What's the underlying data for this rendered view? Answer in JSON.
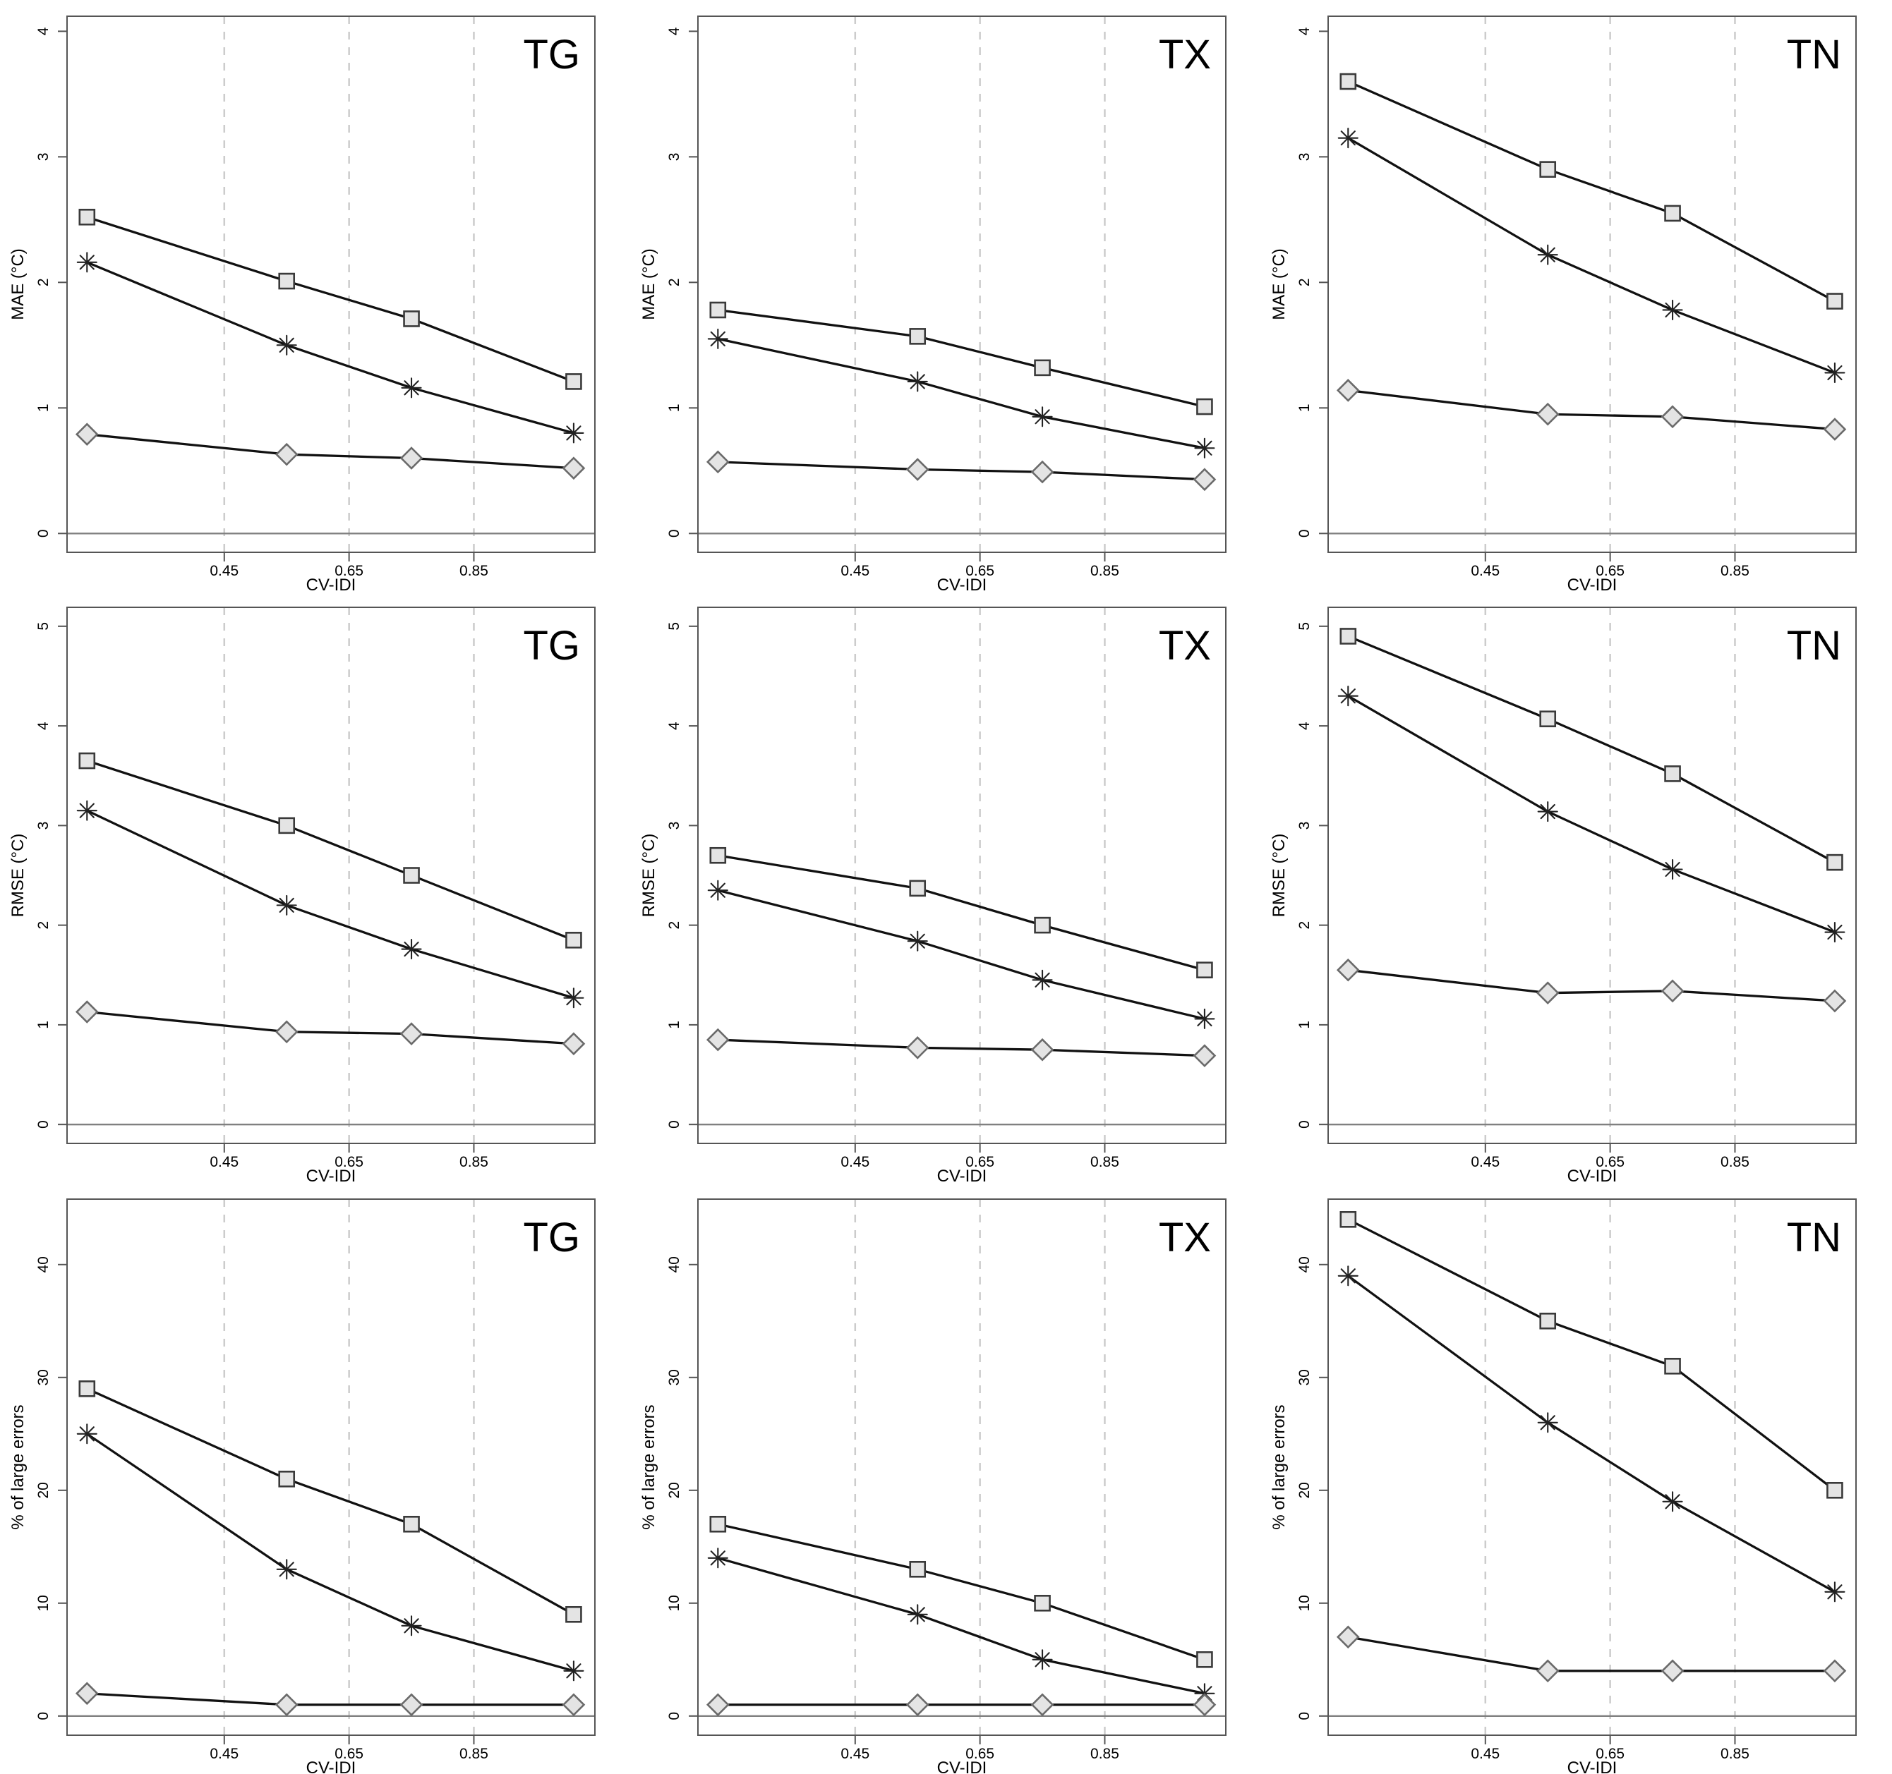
{
  "figure": {
    "column_tags": [
      "TG",
      "TX",
      "TN"
    ],
    "row_metrics": [
      "MAE (°C)",
      "RMSE (°C)",
      "% of large errors"
    ],
    "x_axis_label": "CV-IDI",
    "marker_shapes": [
      "square",
      "asterisk",
      "diamond"
    ],
    "colors": {
      "series_line": "#111111",
      "marker_fill": "#e4e4e4",
      "square_stroke": "#3a3a3a",
      "diamond_stroke": "#6a6a6a",
      "asterisk_stroke": "#222222",
      "gridline": "#cccccc",
      "axis_box": "#555555",
      "zero_line": "#808080",
      "text": "#000000"
    }
  },
  "chart_data": [
    {
      "type": "line",
      "tag": "TG",
      "ylabel": "MAE (°C)",
      "xlabel": "CV-IDI",
      "x": [
        0.23,
        0.55,
        0.75,
        1.01
      ],
      "xticks": [
        0.45,
        0.65,
        0.85
      ],
      "yticks": [
        0,
        1,
        2,
        3,
        4
      ],
      "xlim": [
        0.198,
        1.044
      ],
      "ylim": [
        -0.15,
        4.12
      ],
      "grid": "vertical-dashed",
      "legend": "none",
      "series": [
        {
          "marker": "square",
          "values": [
            2.52,
            2.01,
            1.71,
            1.21
          ]
        },
        {
          "marker": "asterisk",
          "values": [
            2.16,
            1.5,
            1.16,
            0.8
          ]
        },
        {
          "marker": "diamond",
          "values": [
            0.79,
            0.63,
            0.6,
            0.52
          ]
        }
      ]
    },
    {
      "type": "line",
      "tag": "TX",
      "ylabel": "MAE (°C)",
      "xlabel": "CV-IDI",
      "x": [
        0.23,
        0.55,
        0.75,
        1.01
      ],
      "xticks": [
        0.45,
        0.65,
        0.85
      ],
      "yticks": [
        0,
        1,
        2,
        3,
        4
      ],
      "xlim": [
        0.198,
        1.044
      ],
      "ylim": [
        -0.15,
        4.12
      ],
      "grid": "vertical-dashed",
      "legend": "none",
      "series": [
        {
          "marker": "square",
          "values": [
            1.78,
            1.57,
            1.32,
            1.01
          ]
        },
        {
          "marker": "asterisk",
          "values": [
            1.55,
            1.21,
            0.93,
            0.68
          ]
        },
        {
          "marker": "diamond",
          "values": [
            0.57,
            0.51,
            0.49,
            0.43
          ]
        }
      ]
    },
    {
      "type": "line",
      "tag": "TN",
      "ylabel": "MAE (°C)",
      "xlabel": "CV-IDI",
      "x": [
        0.23,
        0.55,
        0.75,
        1.01
      ],
      "xticks": [
        0.45,
        0.65,
        0.85
      ],
      "yticks": [
        0,
        1,
        2,
        3,
        4
      ],
      "xlim": [
        0.198,
        1.044
      ],
      "ylim": [
        -0.15,
        4.12
      ],
      "grid": "vertical-dashed",
      "legend": "none",
      "series": [
        {
          "marker": "square",
          "values": [
            3.6,
            2.9,
            2.55,
            1.85
          ]
        },
        {
          "marker": "asterisk",
          "values": [
            3.15,
            2.22,
            1.78,
            1.28
          ]
        },
        {
          "marker": "diamond",
          "values": [
            1.14,
            0.95,
            0.93,
            0.83
          ]
        }
      ]
    },
    {
      "type": "line",
      "tag": "TG",
      "ylabel": "RMSE (°C)",
      "xlabel": "CV-IDI",
      "x": [
        0.23,
        0.55,
        0.75,
        1.01
      ],
      "xticks": [
        0.45,
        0.65,
        0.85
      ],
      "yticks": [
        0,
        1,
        2,
        3,
        4,
        5
      ],
      "xlim": [
        0.198,
        1.044
      ],
      "ylim": [
        -0.19,
        5.19
      ],
      "grid": "vertical-dashed",
      "legend": "none",
      "series": [
        {
          "marker": "square",
          "values": [
            3.65,
            3.0,
            2.5,
            1.85
          ]
        },
        {
          "marker": "asterisk",
          "values": [
            3.15,
            2.2,
            1.76,
            1.27
          ]
        },
        {
          "marker": "diamond",
          "values": [
            1.13,
            0.93,
            0.91,
            0.81
          ]
        }
      ]
    },
    {
      "type": "line",
      "tag": "TX",
      "ylabel": "RMSE (°C)",
      "xlabel": "CV-IDI",
      "x": [
        0.23,
        0.55,
        0.75,
        1.01
      ],
      "xticks": [
        0.45,
        0.65,
        0.85
      ],
      "yticks": [
        0,
        1,
        2,
        3,
        4,
        5
      ],
      "xlim": [
        0.198,
        1.044
      ],
      "ylim": [
        -0.19,
        5.19
      ],
      "grid": "vertical-dashed",
      "legend": "none",
      "series": [
        {
          "marker": "square",
          "values": [
            2.7,
            2.37,
            2.0,
            1.55
          ]
        },
        {
          "marker": "asterisk",
          "values": [
            2.35,
            1.84,
            1.45,
            1.06
          ]
        },
        {
          "marker": "diamond",
          "values": [
            0.85,
            0.77,
            0.75,
            0.69
          ]
        }
      ]
    },
    {
      "type": "line",
      "tag": "TN",
      "ylabel": "RMSE (°C)",
      "xlabel": "CV-IDI",
      "x": [
        0.23,
        0.55,
        0.75,
        1.01
      ],
      "xticks": [
        0.45,
        0.65,
        0.85
      ],
      "yticks": [
        0,
        1,
        2,
        3,
        4,
        5
      ],
      "xlim": [
        0.198,
        1.044
      ],
      "ylim": [
        -0.19,
        5.19
      ],
      "grid": "vertical-dashed",
      "legend": "none",
      "series": [
        {
          "marker": "square",
          "values": [
            4.9,
            4.07,
            3.52,
            2.63
          ]
        },
        {
          "marker": "asterisk",
          "values": [
            4.3,
            3.14,
            2.56,
            1.93
          ]
        },
        {
          "marker": "diamond",
          "values": [
            1.55,
            1.32,
            1.34,
            1.24
          ]
        }
      ]
    },
    {
      "type": "line",
      "tag": "TG",
      "ylabel": "% of large errors",
      "xlabel": "CV-IDI",
      "x": [
        0.23,
        0.55,
        0.75,
        1.01
      ],
      "xticks": [
        0.45,
        0.65,
        0.85
      ],
      "yticks": [
        0,
        10,
        20,
        30,
        40
      ],
      "xlim": [
        0.198,
        1.044
      ],
      "ylim": [
        -1.7,
        45.8
      ],
      "grid": "vertical-dashed",
      "legend": "none",
      "series": [
        {
          "marker": "square",
          "values": [
            29,
            21,
            17,
            9
          ]
        },
        {
          "marker": "asterisk",
          "values": [
            25,
            13,
            8,
            4
          ]
        },
        {
          "marker": "diamond",
          "values": [
            2,
            1,
            1,
            1
          ]
        }
      ]
    },
    {
      "type": "line",
      "tag": "TX",
      "ylabel": "% of large errors",
      "xlabel": "CV-IDI",
      "x": [
        0.23,
        0.55,
        0.75,
        1.01
      ],
      "xticks": [
        0.45,
        0.65,
        0.85
      ],
      "yticks": [
        0,
        10,
        20,
        30,
        40
      ],
      "xlim": [
        0.198,
        1.044
      ],
      "ylim": [
        -1.7,
        45.8
      ],
      "grid": "vertical-dashed",
      "legend": "none",
      "series": [
        {
          "marker": "square",
          "values": [
            17,
            13,
            10,
            5
          ]
        },
        {
          "marker": "asterisk",
          "values": [
            14,
            9,
            5,
            2
          ]
        },
        {
          "marker": "diamond",
          "values": [
            1,
            1,
            1,
            1
          ]
        }
      ]
    },
    {
      "type": "line",
      "tag": "TN",
      "ylabel": "% of large errors",
      "xlabel": "CV-IDI",
      "x": [
        0.23,
        0.55,
        0.75,
        1.01
      ],
      "xticks": [
        0.45,
        0.65,
        0.85
      ],
      "yticks": [
        0,
        10,
        20,
        30,
        40
      ],
      "xlim": [
        0.198,
        1.044
      ],
      "ylim": [
        -1.7,
        45.8
      ],
      "grid": "vertical-dashed",
      "legend": "none",
      "series": [
        {
          "marker": "square",
          "values": [
            44,
            35,
            31,
            20
          ]
        },
        {
          "marker": "asterisk",
          "values": [
            39,
            26,
            19,
            11
          ]
        },
        {
          "marker": "diamond",
          "values": [
            7,
            4,
            4,
            4
          ]
        }
      ]
    }
  ]
}
